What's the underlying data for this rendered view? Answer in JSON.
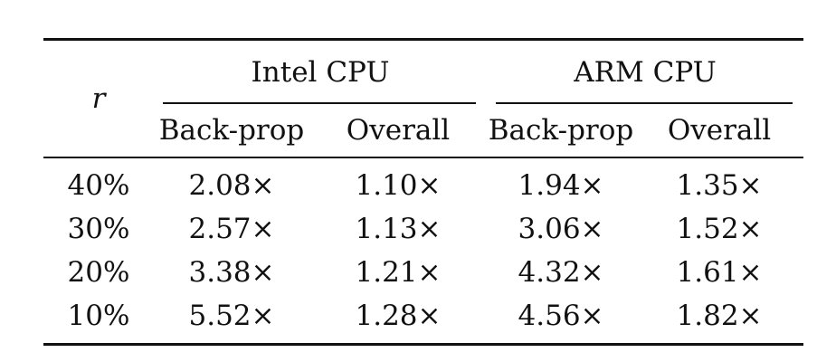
{
  "table": {
    "row_header": "r",
    "groups": [
      {
        "label": "Intel CPU",
        "columns": [
          "Back-prop",
          "Overall"
        ]
      },
      {
        "label": "ARM CPU",
        "columns": [
          "Back-prop",
          "Overall"
        ]
      }
    ],
    "rows": [
      {
        "r": "40%",
        "values": [
          "2.08×",
          "1.10×",
          "1.94×",
          "1.35×"
        ]
      },
      {
        "r": "30%",
        "values": [
          "2.57×",
          "1.13×",
          "3.06×",
          "1.52×"
        ]
      },
      {
        "r": "20%",
        "values": [
          "3.38×",
          "1.21×",
          "4.32×",
          "1.61×"
        ]
      },
      {
        "r": "10%",
        "values": [
          "5.52×",
          "1.28×",
          "4.56×",
          "1.82×"
        ]
      }
    ]
  }
}
